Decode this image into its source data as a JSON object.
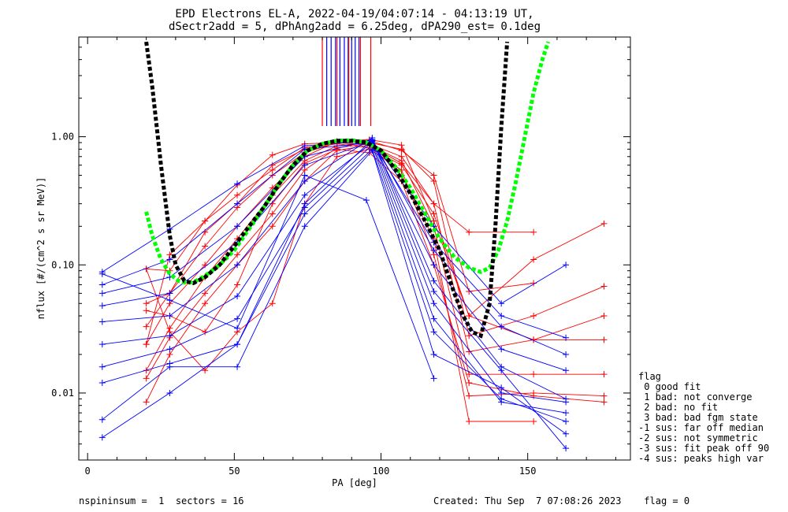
{
  "chart_data": {
    "type": "line",
    "title_line1": "EPD Electrons EL-A, 2022-04-19/04:07:14 - 04:13:19 UT,",
    "title_line2": "dSectr2add = 5, dPhAng2add = 6.25deg, dPA290_est=   0.1deg",
    "xlabel": "PA [deg]",
    "ylabel": "nflux [#/(cm^2 s sr MeV)]",
    "xlim": [
      -3,
      185
    ],
    "ylim": [
      0.003,
      6
    ],
    "y_scale": "log",
    "x_ticks": [
      0,
      50,
      100,
      150
    ],
    "y_ticks": [
      0.01,
      0.1,
      1.0
    ],
    "x_tick_labels": [
      "0",
      "50",
      "100",
      "150"
    ],
    "y_tick_labels": [
      "0.01",
      "0.10",
      "1.00"
    ],
    "footer_left": "nspininsum =  1  sectors = 16",
    "footer_right": "Created: Thu Sep  7 07:08:26 2023    flag = 0",
    "legend": {
      "title": "flag",
      "items": [
        " 0 good fit",
        " 1 bad: not converge",
        " 2 bad: no fit",
        " 3 bad: bad fgm state",
        "-1 sus: far off median",
        "-2 sus: not symmetric",
        "-3 sus: fit peak off 90",
        "-4 sus: peaks high var"
      ]
    },
    "colors": {
      "red_series": "#ff0000",
      "blue_series": "#0000ff",
      "fit_black": "#000000",
      "fit_green": "#00ff00"
    },
    "pa_markers": {
      "blue": [
        81.5,
        83,
        84.5,
        86,
        87.5,
        88.8,
        90,
        91.2,
        92.5
      ],
      "red": [
        80,
        85,
        89,
        93,
        96.5
      ]
    },
    "fit_black": {
      "x": [
        20,
        22,
        25,
        28,
        30,
        33,
        36,
        40,
        45,
        50,
        55,
        60,
        65,
        70,
        75,
        80,
        85,
        90,
        95,
        100,
        105,
        110,
        115,
        120,
        125,
        128,
        131,
        134,
        137,
        139,
        141,
        143
      ],
      "y": [
        5.5,
        2.5,
        0.6,
        0.17,
        0.1,
        0.075,
        0.072,
        0.08,
        0.1,
        0.14,
        0.2,
        0.28,
        0.42,
        0.6,
        0.78,
        0.88,
        0.93,
        0.93,
        0.9,
        0.78,
        0.55,
        0.36,
        0.22,
        0.13,
        0.06,
        0.04,
        0.03,
        0.028,
        0.05,
        0.2,
        1.2,
        5.5
      ]
    },
    "fit_green": {
      "x": [
        20,
        22,
        25,
        28,
        31,
        34,
        37,
        40,
        45,
        50,
        55,
        60,
        65,
        70,
        75,
        80,
        85,
        90,
        95,
        100,
        105,
        110,
        115,
        120,
        125,
        130,
        134,
        137,
        140,
        143,
        146,
        149,
        152,
        155,
        157
      ],
      "y": [
        0.26,
        0.17,
        0.11,
        0.085,
        0.075,
        0.072,
        0.075,
        0.082,
        0.1,
        0.13,
        0.19,
        0.28,
        0.42,
        0.6,
        0.78,
        0.88,
        0.93,
        0.94,
        0.9,
        0.78,
        0.58,
        0.4,
        0.25,
        0.16,
        0.115,
        0.095,
        0.088,
        0.095,
        0.13,
        0.22,
        0.45,
        1.0,
        2.2,
        4.0,
        5.5
      ]
    },
    "red_series": [
      {
        "x": [
          20,
          28,
          40,
          51,
          63,
          74,
          85,
          96,
          107,
          118,
          130,
          152
        ],
        "y": [
          0.093,
          0.09,
          0.22,
          0.42,
          0.72,
          0.88,
          0.9,
          0.86,
          0.62,
          0.3,
          0.18,
          0.18
        ]
      },
      {
        "x": [
          20,
          28,
          40,
          51,
          63,
          74,
          85,
          96,
          107,
          118,
          130,
          152
        ],
        "y": [
          0.05,
          0.06,
          0.14,
          0.28,
          0.5,
          0.75,
          0.9,
          0.93,
          0.78,
          0.5,
          0.062,
          0.072
        ]
      },
      {
        "x": [
          20,
          28,
          40,
          51,
          63,
          74,
          85,
          96,
          107,
          118,
          130,
          152,
          176
        ],
        "y": [
          0.024,
          0.05,
          0.1,
          0.2,
          0.4,
          0.7,
          0.92,
          0.95,
          0.86,
          0.22,
          0.04,
          0.11,
          0.21
        ]
      },
      {
        "x": [
          20,
          28,
          40,
          51,
          63,
          74,
          85,
          96,
          107,
          118,
          130,
          152,
          176
        ],
        "y": [
          0.015,
          0.032,
          0.08,
          0.16,
          0.35,
          0.65,
          0.85,
          0.9,
          0.8,
          0.45,
          0.028,
          0.04,
          0.068
        ]
      },
      {
        "x": [
          20,
          28,
          40,
          51,
          63,
          74,
          85,
          96,
          107,
          118,
          130,
          152,
          176
        ],
        "y": [
          0.013,
          0.027,
          0.06,
          0.12,
          0.25,
          0.55,
          0.82,
          0.88,
          0.7,
          0.3,
          0.021,
          0.026,
          0.04
        ]
      },
      {
        "x": [
          20,
          28,
          40,
          51,
          63,
          74,
          85,
          96,
          107,
          118,
          130,
          152,
          176
        ],
        "y": [
          0.0085,
          0.02,
          0.05,
          0.1,
          0.2,
          0.45,
          0.78,
          0.86,
          0.65,
          0.2,
          0.014,
          0.014,
          0.014
        ]
      },
      {
        "x": [
          20,
          28,
          40,
          51,
          63,
          74,
          85,
          96,
          107,
          118,
          130,
          152,
          176
        ],
        "y": [
          0.093,
          0.03,
          0.015,
          0.03,
          0.05,
          0.3,
          0.7,
          0.8,
          0.55,
          0.12,
          0.0095,
          0.01,
          0.0095
        ]
      },
      {
        "x": [
          20,
          28,
          40,
          51,
          63,
          74,
          85,
          96,
          107,
          118,
          130,
          152,
          176
        ],
        "y": [
          0.044,
          0.04,
          0.03,
          0.07,
          0.3,
          0.62,
          0.8,
          0.75,
          0.45,
          0.1,
          0.012,
          0.0095,
          0.0085
        ]
      },
      {
        "x": [
          20,
          28,
          40,
          51,
          63,
          74,
          85,
          96,
          107,
          118,
          130,
          152
        ],
        "y": [
          0.024,
          0.12,
          0.22,
          0.35,
          0.55,
          0.82,
          0.9,
          0.87,
          0.5,
          0.16,
          0.006,
          0.006
        ]
      },
      {
        "x": [
          20,
          28,
          40,
          51,
          63,
          74,
          85,
          96,
          107,
          118,
          130,
          152,
          176
        ],
        "y": [
          0.033,
          0.06,
          0.18,
          0.3,
          0.6,
          0.8,
          0.88,
          0.82,
          0.6,
          0.25,
          0.04,
          0.026,
          0.026
        ]
      }
    ],
    "blue_series": [
      {
        "x": [
          5,
          28,
          51,
          74,
          97,
          118,
          141,
          163
        ],
        "y": [
          0.088,
          0.19,
          0.43,
          0.85,
          0.93,
          0.2,
          0.05,
          0.1
        ]
      },
      {
        "x": [
          5,
          28,
          51,
          74,
          97,
          118,
          141,
          163
        ],
        "y": [
          0.07,
          0.11,
          0.3,
          0.8,
          0.9,
          0.15,
          0.04,
          0.027
        ]
      },
      {
        "x": [
          5,
          28,
          51,
          74,
          97,
          118,
          141,
          163
        ],
        "y": [
          0.06,
          0.08,
          0.2,
          0.7,
          0.95,
          0.13,
          0.033,
          0.02
        ]
      },
      {
        "x": [
          5,
          28,
          51,
          74,
          97,
          118,
          141,
          163
        ],
        "y": [
          0.048,
          0.06,
          0.15,
          0.6,
          0.92,
          0.1,
          0.022,
          0.015
        ]
      },
      {
        "x": [
          5,
          28,
          51,
          74,
          97,
          118,
          141,
          163
        ],
        "y": [
          0.036,
          0.04,
          0.1,
          0.45,
          0.98,
          0.075,
          0.016,
          0.009
        ]
      },
      {
        "x": [
          5,
          28,
          51,
          74,
          97,
          118,
          141,
          163
        ],
        "y": [
          0.024,
          0.028,
          0.057,
          0.35,
          0.9,
          0.05,
          0.01,
          0.0085
        ]
      },
      {
        "x": [
          5,
          28,
          51,
          74,
          97,
          118,
          141,
          163
        ],
        "y": [
          0.016,
          0.022,
          0.038,
          0.28,
          0.86,
          0.038,
          0.0085,
          0.007
        ]
      },
      {
        "x": [
          5,
          28,
          51,
          74,
          97,
          118,
          141,
          163
        ],
        "y": [
          0.012,
          0.017,
          0.024,
          0.25,
          0.8,
          0.03,
          0.009,
          0.006
        ]
      },
      {
        "x": [
          5,
          28,
          51,
          74,
          97,
          118,
          141,
          163
        ],
        "y": [
          0.0062,
          0.016,
          0.016,
          0.2,
          0.78,
          0.02,
          0.011,
          0.0048
        ]
      },
      {
        "x": [
          5,
          28,
          51,
          74,
          97,
          118,
          141,
          163
        ],
        "y": [
          0.0045,
          0.01,
          0.024,
          0.3,
          0.95,
          0.062,
          0.015,
          0.0037
        ]
      },
      {
        "x": [
          5,
          28,
          51,
          74,
          95,
          118
        ],
        "y": [
          0.085,
          0.053,
          0.032,
          0.5,
          0.32,
          0.013
        ]
      }
    ]
  }
}
